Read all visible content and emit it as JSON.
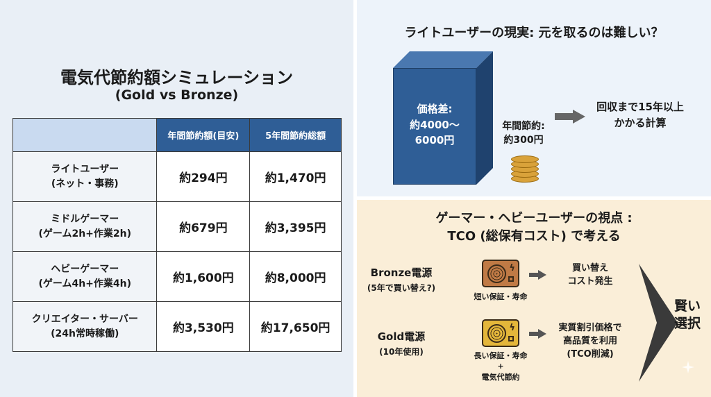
{
  "simulation": {
    "title": "電気代節約額シミュレーション",
    "subtitle": "(Gold vs Bronze)",
    "headers": [
      "",
      "年間節約額(目安)",
      "5年間節約総額"
    ],
    "rows": [
      {
        "label": "ライトユーザー",
        "sub": "(ネット・事務)",
        "annual": "約294円",
        "five_year": "約1,470円"
      },
      {
        "label": "ミドルゲーマー",
        "sub": "(ゲーム2h+作業2h)",
        "annual": "約679円",
        "five_year": "約3,395円"
      },
      {
        "label": "ヘビーゲーマー",
        "sub": "(ゲーム4h+作業4h)",
        "annual": "約1,600円",
        "five_year": "約8,000円"
      },
      {
        "label": "クリエイター・サーバー",
        "sub": "(24h常時稼働)",
        "annual": "約3,530円",
        "five_year": "約17,650円"
      }
    ]
  },
  "light_user": {
    "title": "ライトユーザーの現実: 元を取るのは難しい？",
    "price_diff_line1": "価格差:",
    "price_diff_line2": "約4000～",
    "price_diff_line3": "6000円",
    "annual_save_line1": "年間節約:",
    "annual_save_line2": "約300円",
    "recover_line1": "回収まで15年以上",
    "recover_line2": "かかる計算"
  },
  "heavy_user": {
    "title_line1": "ゲーマー・ヘビーユーザーの視点 :",
    "title_line2": "TCO (総保有コスト) で考える",
    "bronze": {
      "label": "Bronze電源",
      "sub": "(5年で買い替え?)",
      "caption": "短い保証・寿命",
      "result_line1": "買い替え",
      "result_line2": "コスト発生"
    },
    "gold": {
      "label": "Gold電源",
      "sub": "(10年使用)",
      "caption_line1": "長い保証・寿命",
      "caption_line2": "+",
      "caption_line3": "電気代節約",
      "result_line1": "実質割引価格で",
      "result_line2": "高品質を利用",
      "result_line3": "(TCO削減)"
    },
    "choice_line1": "賢い",
    "choice_line2": "選択"
  },
  "colors": {
    "table_header": "#2f5e96",
    "box_front": "#2f5e96",
    "bronze_psu": "#c07a45",
    "gold_psu": "#e4b63a",
    "coin": "#d9a23a"
  },
  "icons": [
    "psu-bronze-icon",
    "psu-gold-icon",
    "coin-stack-icon",
    "sparkle-icon"
  ]
}
